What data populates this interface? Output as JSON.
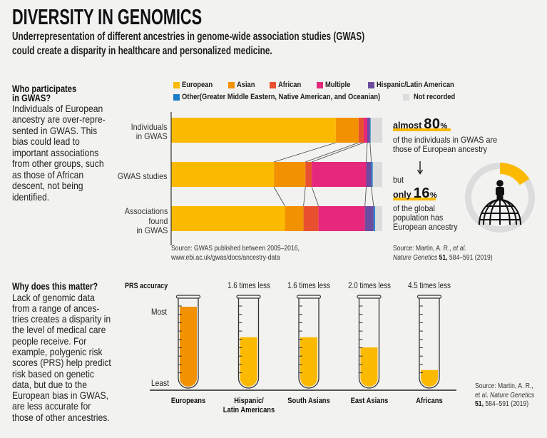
{
  "header": {
    "title": "DIVERSITY IN GENOMICS",
    "subtitle": [
      "Underrepresentation of different ancestries in genome-wide association studies (GWAS)",
      "could create a disparity in healthcare and personalized medicine."
    ]
  },
  "section_participation": {
    "heading": [
      "Who participates",
      "in GWAS?"
    ],
    "body": [
      "Individuals of European",
      "ancestry are over-repre-",
      "sented in GWAS. This",
      "bias could lead to",
      "important associations",
      "from other groups, such",
      "as those of African",
      "descent, not being",
      "identified."
    ]
  },
  "section_matter": {
    "heading": "Why does this matter?",
    "body": [
      "Lack of genomic data",
      "from a range of ances-",
      "tries creates a disparity in",
      "the level of medical care",
      "people receive. For",
      "example, polygenic risk",
      "scores (PRS) help predict",
      "risk based on genetic",
      "data, but due to the",
      "European bias in GWAS,",
      "are less accurate for",
      "those of other ancestries."
    ]
  },
  "callouts": {
    "gwas": {
      "prefix": "almost",
      "value": "80",
      "unit": "%",
      "lines": [
        "of the individuals in GWAS are",
        "those of European ancestry"
      ]
    },
    "connector": "but",
    "global": {
      "prefix": "only",
      "value": "16",
      "unit": "%",
      "lines": [
        "of the global",
        "population has",
        "European ancestry"
      ]
    },
    "icons": [
      "arrow-down-icon",
      "person-icon",
      "globe-icon"
    ]
  },
  "sources": {
    "gwas_bars": [
      "Source: GWAS published between 2005–2016,",
      "www.ebi.ac.uk/gwas/docs/ancestry-data"
    ],
    "global_share": {
      "line1": {
        "text": "Source: Martin, A. R., ",
        "italic": "et al."
      },
      "line2": {
        "italic": "Nature Genetics ",
        "bold": "51,",
        "text": " 584–591 (2019)"
      }
    },
    "prs": {
      "line1": "Source: Martin, A. R.,",
      "line2": {
        "text": "et al. ",
        "italic": "Nature Genetics"
      },
      "line3": {
        "bold": "51,",
        "text": " 584–591 (2019)"
      }
    }
  },
  "chart_data": [
    {
      "id": "gwas_ancestry",
      "type": "bar",
      "orientation": "horizontal",
      "stacked": true,
      "title": "",
      "xlabel": "",
      "ylabel": "",
      "units": "%",
      "xlim": [
        0,
        100
      ],
      "grid": false,
      "legend": "top",
      "categories": [
        "Individuals in GWAS",
        "GWAS studies",
        "Associations found in GWAS"
      ],
      "category_label_lines": [
        [
          "Individuals",
          "in GWAS"
        ],
        [
          "GWAS studies"
        ],
        [
          "Associations",
          "found",
          "in GWAS"
        ]
      ],
      "series": [
        {
          "name": "European",
          "color": "#fbba00",
          "values": [
            78.0,
            48.7,
            53.9
          ]
        },
        {
          "name": "Asian",
          "color": "#f39200",
          "values": [
            10.8,
            14.9,
            8.8
          ]
        },
        {
          "name": "African",
          "color": "#e8502f",
          "values": [
            2.4,
            3.0,
            7.1
          ]
        },
        {
          "name": "Multiple",
          "color": "#e5287b",
          "values": [
            1.7,
            25.8,
            22.0
          ]
        },
        {
          "name": "Hispanic/Latin American",
          "color": "#6b4c9f",
          "values": [
            1.3,
            2.4,
            4.1
          ]
        },
        {
          "name": "Other(Greater Middle Eastern, Native American, and Oceanian)",
          "color": "#1d7cc8",
          "values": [
            0.3,
            0.7,
            0.7
          ]
        },
        {
          "name": "Not recorded",
          "color": "#dcdcdc",
          "values": [
            5.5,
            4.5,
            3.4
          ]
        }
      ]
    },
    {
      "id": "global_european_share",
      "type": "pie",
      "style": "donut",
      "title": "",
      "slices": [
        {
          "label": "European ancestry",
          "value": 16,
          "color": "#fbba00"
        },
        {
          "label": "Other ancestries",
          "value": 84,
          "color": "#dcdcdc"
        }
      ]
    },
    {
      "id": "prs_accuracy",
      "type": "bar",
      "title": "PRS accuracy",
      "xlabel": "",
      "ylabel": "PRS accuracy",
      "y_axis_labels": {
        "top": "Most",
        "bottom": "Least"
      },
      "ylim": [
        0,
        1
      ],
      "categories": [
        "Europeans",
        "Hispanic/Latin Americans",
        "South Asians",
        "East Asians",
        "Africans"
      ],
      "category_label_lines": [
        [
          "Europeans"
        ],
        [
          "Hispanic/",
          "Latin Americans"
        ],
        [
          "South Asians"
        ],
        [
          "East Asians"
        ],
        [
          "Africans"
        ]
      ],
      "times_less": [
        1.0,
        1.6,
        1.6,
        2.0,
        4.5
      ],
      "relative_accuracy": [
        1.0,
        0.625,
        0.625,
        0.5,
        0.222
      ],
      "data_labels": [
        "",
        "1.6 times less",
        "1.6 times less",
        "2.0 times less",
        "4.5 times less"
      ],
      "colors": [
        "#f39200",
        "#fbba00",
        "#fbba00",
        "#fbba00",
        "#fbba00"
      ]
    }
  ]
}
